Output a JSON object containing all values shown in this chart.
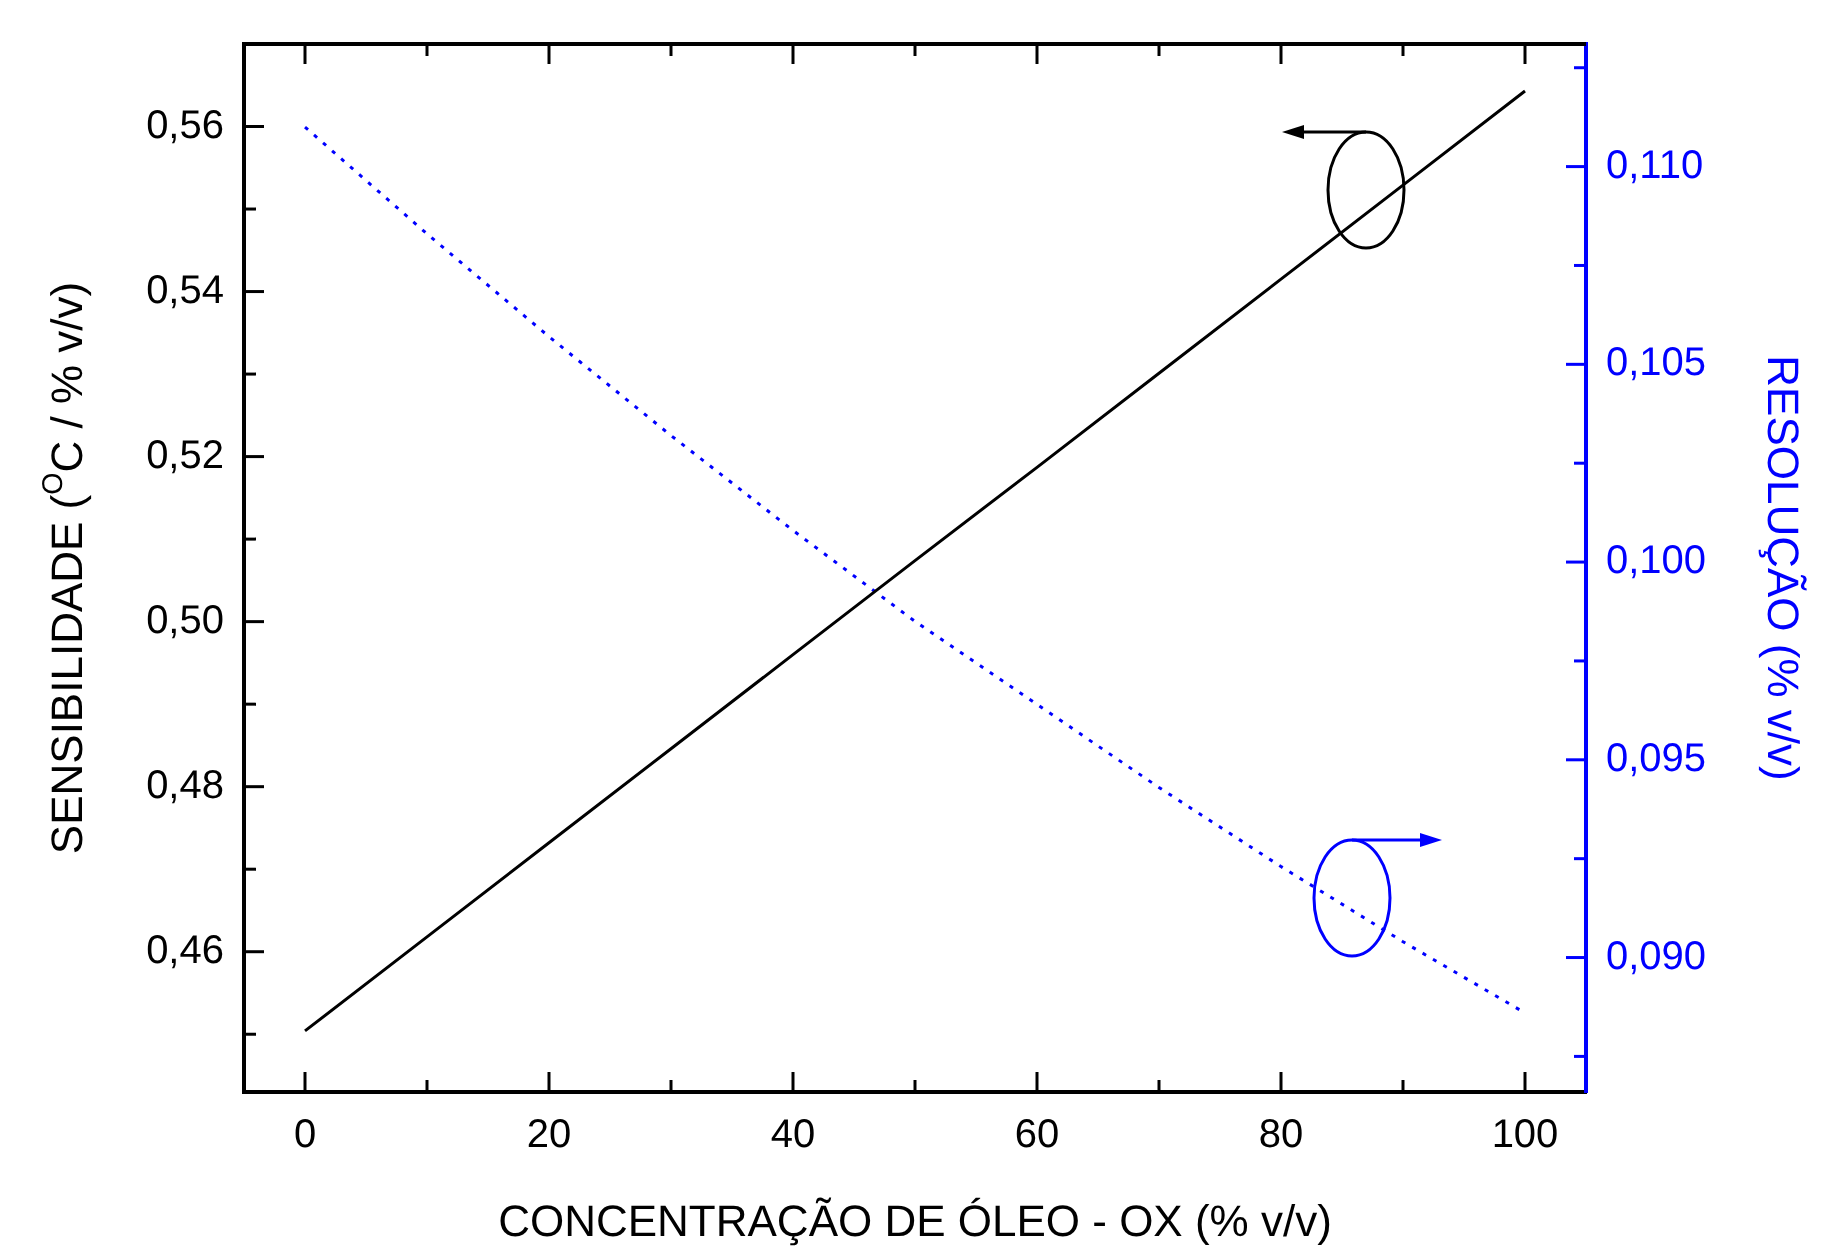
{
  "chart_data": {
    "type": "line",
    "xlabel": "CONCENTRAÇÃO DE ÓLEO - OX (% v/v)",
    "ylabel": "SENSIBILIDADE ($^{O}$C / % v/v)",
    "y2label": "RESOLUÇÃO (% v/v)",
    "x": [
      0,
      10,
      20,
      30,
      40,
      50,
      60,
      70,
      80,
      90,
      100
    ],
    "series": [
      {
        "color": "#000000",
        "line_style": "solid",
        "values": [
          0.4504,
          0.4618,
          0.4732,
          0.4846,
          0.496,
          0.5074,
          0.5187,
          0.5301,
          0.5415,
          0.5529,
          0.5643
        ]
      },
      {
        "color": "#0000ff",
        "line_style": "dotted",
        "axis": "y2",
        "values": [
          0.111,
          0.1083,
          0.1057,
          0.1032,
          0.1008,
          0.0985,
          0.0964,
          0.0943,
          0.0923,
          0.0904,
          0.0886
        ]
      }
    ],
    "xlim": [
      -5,
      105
    ],
    "xticks": [
      0,
      {
        "value": 10,
        "label": null
      },
      20,
      {
        "value": 30,
        "label": null
      },
      40,
      {
        "value": 50,
        "label": null
      },
      60,
      {
        "value": 70,
        "label": null
      },
      80,
      {
        "value": 90,
        "label": null
      },
      100
    ],
    "ylim": [
      0.443,
      0.57
    ],
    "yticks": [
      {
        "value": 0.45,
        "label": null
      },
      {
        "value": 0.46,
        "label": "0,46"
      },
      {
        "value": 0.47,
        "label": null
      },
      {
        "value": 0.48,
        "label": "0,48"
      },
      {
        "value": 0.49,
        "label": null
      },
      {
        "value": 0.5,
        "label": "0,50"
      },
      {
        "value": 0.51,
        "label": null
      },
      {
        "value": 0.52,
        "label": "0,52"
      },
      {
        "value": 0.53,
        "label": null
      },
      {
        "value": 0.54,
        "label": "0,54"
      },
      {
        "value": 0.55,
        "label": null
      },
      {
        "value": 0.56,
        "label": "0,56"
      }
    ],
    "y2lim": [
      0.0866,
      0.1131
    ],
    "y2ticks": [
      {
        "value": 0.0875,
        "label": null
      },
      {
        "value": 0.09,
        "label": "0,090"
      },
      {
        "value": 0.0925,
        "label": null
      },
      {
        "value": 0.095,
        "label": "0,095"
      },
      {
        "value": 0.0975,
        "label": null
      },
      {
        "value": 0.1,
        "label": "0,100"
      },
      {
        "value": 0.1025,
        "label": null
      },
      {
        "value": 0.105,
        "label": "0,105"
      },
      {
        "value": 0.1075,
        "label": null
      },
      {
        "value": 0.11,
        "label": "0,110"
      },
      {
        "value": 0.1125,
        "label": null
      }
    ],
    "grid": false,
    "legend": false,
    "marker": "none"
  }
}
